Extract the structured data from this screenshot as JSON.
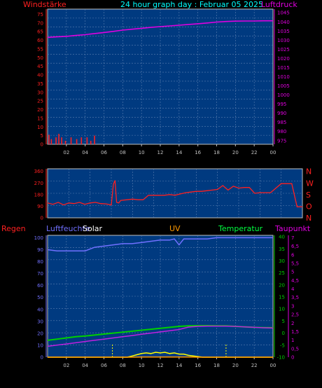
{
  "header": {
    "left_label": "Windstärke",
    "title": "24 hour graph day : Februar 05 2025",
    "right_label": "Luftdruck"
  },
  "colors": {
    "background": "#000000",
    "plot_fill": "#003a80",
    "grid": "#5a7fb0",
    "axis_red": "#ff2020",
    "axis_magenta": "#e000e0",
    "humidity": "#7070ff",
    "temperature": "#00d000",
    "dewpoint": "#c020e0",
    "solar": "#ffff00",
    "uv": "#ff9900",
    "white": "#ffffff",
    "cyan": "#00ffff"
  },
  "chart_data": [
    {
      "id": "wind-pressure",
      "type": "line",
      "x_ticks": [
        "02",
        "04",
        "06",
        "08",
        "10",
        "12",
        "14",
        "16",
        "18",
        "20",
        "22",
        "00"
      ],
      "left_axis": {
        "label": "Windstärke",
        "ticks": [
          0,
          5,
          10,
          15,
          20,
          25,
          30,
          35,
          40,
          45,
          50,
          55,
          60,
          65,
          70,
          75
        ],
        "range": [
          0,
          78
        ]
      },
      "right_axis": {
        "label": "Luftdruck",
        "ticks": [
          975,
          980,
          985,
          990,
          995,
          1000,
          1005,
          1010,
          1015,
          1020,
          1025,
          1030,
          1035,
          1040,
          1045
        ],
        "range": [
          973,
          1047
        ]
      },
      "series": [
        {
          "role": "pressure",
          "x": [
            0,
            1,
            2,
            3,
            4,
            5,
            6,
            7,
            8,
            9,
            10,
            11,
            12,
            13,
            14,
            15,
            16,
            17,
            18,
            19,
            20,
            21,
            22,
            23,
            24
          ],
          "values": [
            1031.5,
            1031.8,
            1032.1,
            1032.6,
            1033.0,
            1033.6,
            1034.2,
            1034.8,
            1035.5,
            1036.0,
            1036.5,
            1037.0,
            1037.4,
            1037.8,
            1038.2,
            1038.6,
            1039.0,
            1039.4,
            1039.9,
            1040.2,
            1040.4,
            1040.5,
            1040.5,
            1040.6,
            1040.6
          ]
        }
      ],
      "wind_bars": {
        "x": [
          0.15,
          0.4,
          0.9,
          1.2,
          1.5,
          1.9,
          2.5,
          3.1,
          3.6,
          4.2,
          4.6,
          5.0
        ],
        "values": [
          5.5,
          3,
          4,
          6,
          4,
          2,
          4,
          3,
          4,
          4,
          2,
          5
        ]
      }
    },
    {
      "id": "wind-direction",
      "type": "line",
      "x_ticks": [
        "02",
        "04",
        "06",
        "08",
        "10",
        "12",
        "14",
        "16",
        "18",
        "20",
        "22",
        "00"
      ],
      "left_axis": {
        "ticks": [
          0,
          90,
          180,
          270,
          360
        ],
        "range": [
          0,
          380
        ]
      },
      "right_axis": {
        "ticks": [
          "N",
          "O",
          "S",
          "W",
          "N"
        ]
      },
      "series": [
        {
          "role": "direction",
          "x": [
            0,
            0.5,
            1,
            1.5,
            2,
            2.5,
            3,
            3.5,
            4,
            4.5,
            5,
            5.5,
            6,
            6.2,
            6.35,
            6.5,
            6.7,
            6.9,
            7.5,
            8,
            8.5,
            9,
            9.5,
            10,
            10.5,
            11,
            11.5,
            12,
            12.5,
            13,
            13.5,
            14,
            14.5,
            15,
            15.5,
            16,
            16.5,
            17,
            17.5,
            18,
            18.5,
            19,
            19.5,
            20,
            20.5,
            21,
            21.5,
            22,
            22.5,
            23,
            23.5,
            24
          ],
          "values": [
            115,
            105,
            120,
            100,
            115,
            110,
            120,
            105,
            115,
            120,
            110,
            108,
            100,
            260,
            290,
            120,
            115,
            135,
            140,
            145,
            140,
            140,
            175,
            175,
            175,
            175,
            180,
            175,
            185,
            195,
            200,
            205,
            205,
            210,
            215,
            220,
            250,
            215,
            245,
            230,
            235,
            235,
            190,
            195,
            195,
            195,
            230,
            265,
            265,
            265,
            85,
            85
          ]
        }
      ]
    },
    {
      "id": "climate",
      "type": "line",
      "x_ticks": [
        "02",
        "04",
        "06",
        "08",
        "10",
        "12",
        "14",
        "16",
        "18",
        "20",
        "22",
        "00"
      ],
      "header_labels": {
        "rain": "Regen",
        "humidity": "Luftfeuchte",
        "solar": "Solar",
        "uv": "UV",
        "temperature": "Temperatur",
        "dewpoint": "Taupunkt"
      },
      "left_axis": {
        "ticks": [
          0,
          10,
          20,
          30,
          40,
          50,
          60,
          70,
          80,
          90,
          100
        ],
        "range": [
          0,
          102
        ]
      },
      "temp_axis": {
        "ticks": [
          -10,
          -5,
          0,
          5,
          10,
          15,
          20,
          25,
          30,
          35,
          40
        ],
        "range": [
          -10,
          40.6
        ]
      },
      "right_axis": {
        "ticks": [
          "0",
          "0,5",
          "1",
          "1,5",
          "2",
          "2,5",
          "3",
          "3,5",
          "4",
          "4,5",
          "5",
          "5,5",
          "6",
          "6,5",
          "7"
        ],
        "range": [
          0,
          7.14
        ]
      },
      "series": [
        {
          "name": "Luftfeuchte",
          "role": "humidity",
          "x": [
            0,
            1,
            2,
            3,
            4,
            5,
            6,
            7,
            8,
            9,
            10,
            11,
            12,
            13,
            13.5,
            14,
            14.5,
            15,
            16,
            17,
            18,
            19,
            20,
            21,
            22,
            23,
            24
          ],
          "values": [
            90,
            89,
            89,
            89,
            89,
            92,
            93,
            94,
            95,
            95,
            96,
            97,
            98,
            98,
            99,
            94,
            99,
            99,
            99,
            99,
            100,
            100,
            100,
            100,
            100,
            100,
            100
          ]
        },
        {
          "name": "Temperatur",
          "role": "temperature",
          "x": [
            0,
            1,
            2,
            3,
            4,
            5,
            6,
            7,
            8,
            9,
            10,
            11,
            12,
            13,
            14,
            15,
            16,
            17,
            18,
            19,
            20,
            21,
            22,
            23,
            24
          ],
          "values": [
            -3,
            -2.5,
            -2,
            -1.5,
            -1.2,
            -0.8,
            -0.4,
            0,
            0.4,
            0.8,
            1.2,
            1.6,
            2,
            2.4,
            2.8,
            3,
            3.1,
            3.1,
            3,
            3,
            2.8,
            2.6,
            2.4,
            2.3,
            2.2
          ]
        },
        {
          "name": "Taupunkt",
          "role": "dewpoint",
          "x": [
            0,
            1,
            2,
            3,
            4,
            5,
            6,
            7,
            8,
            9,
            10,
            11,
            12,
            13,
            14,
            15,
            16,
            17,
            18,
            19,
            20,
            21,
            22,
            23,
            24
          ],
          "values": [
            -5.5,
            -5,
            -4.5,
            -4,
            -3.5,
            -3,
            -2.5,
            -2,
            -1.5,
            -1,
            -0.5,
            0,
            0.5,
            1,
            1.5,
            2.5,
            2.8,
            2.9,
            2.9,
            2.9,
            2.8,
            2.6,
            2.4,
            2.2,
            2.1
          ]
        },
        {
          "name": "Solar",
          "role": "solar",
          "x": [
            0,
            8.5,
            9,
            9.5,
            10,
            10.5,
            11,
            11.5,
            12,
            12.5,
            13,
            13.5,
            14,
            14.5,
            15,
            15.5,
            16,
            16.5,
            24
          ],
          "values": [
            0,
            0,
            1,
            2,
            3,
            3.5,
            3,
            4,
            3.5,
            4,
            3,
            3.5,
            2.5,
            2.5,
            1.5,
            1,
            0.5,
            0,
            0
          ]
        },
        {
          "name": "UV",
          "role": "uv",
          "x": [
            0,
            9,
            10,
            11,
            12,
            13,
            14,
            15,
            16,
            24
          ],
          "values": [
            0,
            0,
            0.1,
            0.15,
            0.2,
            0.2,
            0.15,
            0.1,
            0,
            0
          ]
        }
      ],
      "markers_x": [
        6.9,
        19.0
      ]
    }
  ]
}
